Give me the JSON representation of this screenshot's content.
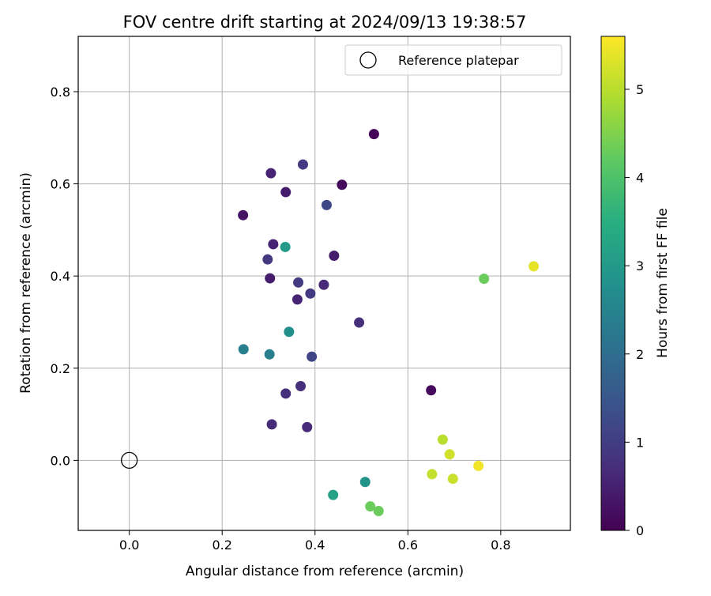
{
  "chart_data": {
    "type": "scatter",
    "title": "FOV centre drift starting at 2024/09/13 19:38:57",
    "xlabel": "Angular distance from reference (arcmin)",
    "ylabel": "Rotation from reference (arcmin)",
    "xlim": [
      -0.11,
      0.95
    ],
    "ylim": [
      -0.152,
      0.92
    ],
    "x_ticks": [
      "0.0",
      "0.2",
      "0.4",
      "0.6",
      "0.8"
    ],
    "y_ticks": [
      "0.0",
      "0.2",
      "0.4",
      "0.6",
      "0.8"
    ],
    "grid": true,
    "legend": {
      "placement": "top-right",
      "entries": [
        "Reference platepar"
      ]
    },
    "reference_point": {
      "x": 0.0,
      "y": 0.0
    },
    "colorbar": {
      "label": "Hours from first FF file",
      "colormap": "viridis",
      "range": [
        0,
        5.6
      ],
      "ticks": [
        "0",
        "1",
        "2",
        "3",
        "4",
        "5"
      ]
    },
    "points": [
      {
        "x": 0.527,
        "y": 0.708,
        "c": 0.05
      },
      {
        "x": 0.458,
        "y": 0.598,
        "c": 0.15
      },
      {
        "x": 0.65,
        "y": 0.152,
        "c": 0.15
      },
      {
        "x": 0.245,
        "y": 0.532,
        "c": 0.3
      },
      {
        "x": 0.305,
        "y": 0.623,
        "c": 0.55
      },
      {
        "x": 0.337,
        "y": 0.582,
        "c": 0.45
      },
      {
        "x": 0.374,
        "y": 0.642,
        "c": 0.95
      },
      {
        "x": 0.425,
        "y": 0.554,
        "c": 1.2
      },
      {
        "x": 0.31,
        "y": 0.469,
        "c": 0.55
      },
      {
        "x": 0.441,
        "y": 0.444,
        "c": 0.45
      },
      {
        "x": 0.298,
        "y": 0.436,
        "c": 0.95
      },
      {
        "x": 0.303,
        "y": 0.395,
        "c": 0.45
      },
      {
        "x": 0.364,
        "y": 0.386,
        "c": 0.95
      },
      {
        "x": 0.419,
        "y": 0.381,
        "c": 0.65
      },
      {
        "x": 0.39,
        "y": 0.362,
        "c": 0.95
      },
      {
        "x": 0.362,
        "y": 0.349,
        "c": 0.55
      },
      {
        "x": 0.495,
        "y": 0.299,
        "c": 0.75
      },
      {
        "x": 0.393,
        "y": 0.225,
        "c": 1.15
      },
      {
        "x": 0.369,
        "y": 0.161,
        "c": 0.75
      },
      {
        "x": 0.337,
        "y": 0.145,
        "c": 0.75
      },
      {
        "x": 0.307,
        "y": 0.078,
        "c": 0.65
      },
      {
        "x": 0.383,
        "y": 0.072,
        "c": 0.65
      },
      {
        "x": 0.336,
        "y": 0.463,
        "c": 3.05
      },
      {
        "x": 0.344,
        "y": 0.279,
        "c": 2.75
      },
      {
        "x": 0.246,
        "y": 0.241,
        "c": 2.4
      },
      {
        "x": 0.302,
        "y": 0.23,
        "c": 2.4
      },
      {
        "x": 0.439,
        "y": -0.075,
        "c": 3.2
      },
      {
        "x": 0.508,
        "y": -0.047,
        "c": 2.85
      },
      {
        "x": 0.519,
        "y": -0.1,
        "c": 4.3
      },
      {
        "x": 0.537,
        "y": -0.11,
        "c": 4.3
      },
      {
        "x": 0.764,
        "y": 0.394,
        "c": 4.3
      },
      {
        "x": 0.871,
        "y": 0.421,
        "c": 5.4
      },
      {
        "x": 0.675,
        "y": 0.045,
        "c": 5.0
      },
      {
        "x": 0.69,
        "y": 0.013,
        "c": 5.2
      },
      {
        "x": 0.652,
        "y": -0.03,
        "c": 5.1
      },
      {
        "x": 0.697,
        "y": -0.04,
        "c": 5.15
      },
      {
        "x": 0.752,
        "y": -0.012,
        "c": 5.5
      }
    ]
  }
}
